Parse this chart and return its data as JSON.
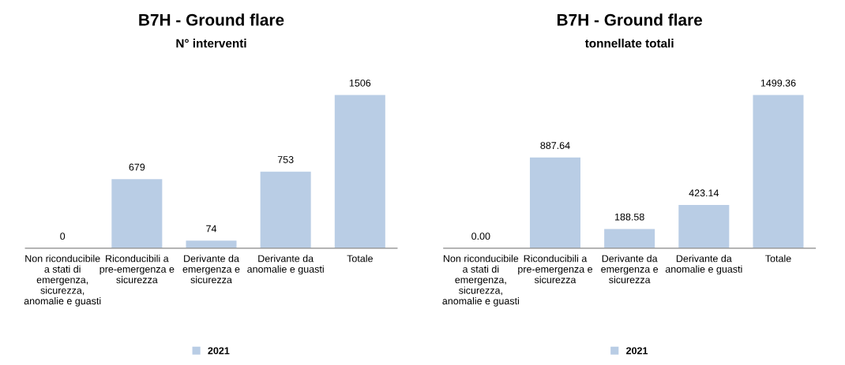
{
  "chart_data": [
    {
      "type": "bar",
      "title": "B7H - Ground flare",
      "subtitle": "N° interventi",
      "categories": [
        "Non riconducibile a stati di emergenza, sicurezza, anomalie e guasti",
        "Riconducibili a pre-emergenza e sicurezza",
        "Derivante da emergenza e sicurezza",
        "Derivante da anomalie e guasti",
        "Totale"
      ],
      "series": [
        {
          "name": "2021",
          "color": "#b9cde5",
          "values": [
            0,
            679,
            74,
            753,
            1506
          ]
        }
      ],
      "data_labels": true,
      "legend": "bottom",
      "grid": false
    },
    {
      "type": "bar",
      "title": "B7H - Ground flare",
      "subtitle": "tonnellate totali",
      "categories": [
        "Non riconducibile a stati di emergenza, sicurezza, anomalie e guasti",
        "Riconducibili a pre-emergenza e sicurezza",
        "Derivante da emergenza e sicurezza",
        "Derivante da anomalie e guasti",
        "Totale"
      ],
      "series": [
        {
          "name": "2021",
          "color": "#b9cde5",
          "values": [
            0,
            887.64,
            188.58,
            423.14,
            1499.36
          ],
          "value_labels": [
            "0.00",
            "887.64",
            "188.58",
            "423.14",
            "1499.36"
          ]
        }
      ],
      "legend": "bottom",
      "grid": false
    }
  ]
}
